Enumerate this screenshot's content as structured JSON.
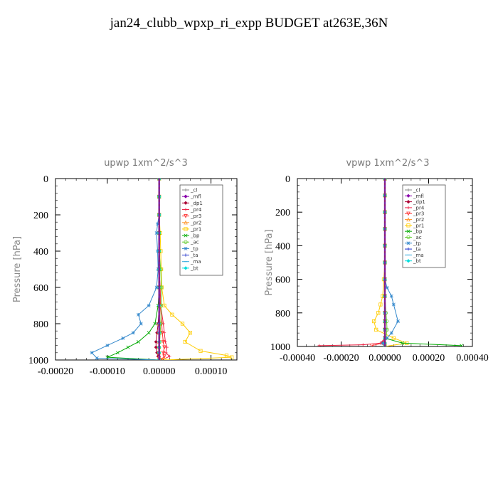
{
  "page": {
    "title": "jan24_clubb_wpxp_ri_expp  BUDGET at263E,36N"
  },
  "chart_data": [
    {
      "type": "line",
      "title": "upwp   1xm^2/s^3",
      "xlabel": "",
      "ylabel": "Pressure [hPa]",
      "xlim": [
        -0.0002,
        0.00015
      ],
      "ylim": [
        1000,
        0
      ],
      "xticks": [
        -0.0002,
        -0.0001,
        0.0,
        0.0001
      ],
      "xtick_labels": [
        "-0.00020",
        "-0.00010",
        "0.00000",
        "0.00010"
      ],
      "yticks": [
        0,
        200,
        400,
        600,
        800,
        1000
      ],
      "ytick_labels": [
        "0",
        "200",
        "400",
        "600",
        "800",
        "1000"
      ],
      "legend_position": "top-right",
      "series": [
        {
          "name": "_cl",
          "color": "#888888",
          "marker": "plus",
          "x": [
            0,
            0,
            0,
            0,
            0,
            0,
            0,
            0,
            0,
            0,
            0,
            0,
            0,
            0,
            0
          ],
          "y": [
            0,
            100,
            200,
            300,
            400,
            500,
            600,
            700,
            800,
            850,
            900,
            930,
            960,
            980,
            1000
          ]
        },
        {
          "name": "_mfl",
          "color": "#8800aa",
          "marker": "diamond",
          "x": [
            0,
            0,
            0,
            0,
            0,
            0,
            0,
            0,
            0,
            0,
            0,
            0,
            0,
            0,
            0
          ],
          "y": [
            0,
            100,
            200,
            300,
            400,
            500,
            600,
            700,
            800,
            850,
            900,
            930,
            960,
            980,
            1000
          ]
        },
        {
          "name": "_dp1",
          "color": "#aa0033",
          "marker": "diamond",
          "x": [
            0,
            0,
            0,
            0,
            0,
            0,
            0,
            0,
            -2e-06,
            -4e-06,
            -6e-06,
            -6e-06,
            -4e-06,
            -2e-06,
            0
          ],
          "y": [
            0,
            100,
            200,
            300,
            400,
            500,
            600,
            700,
            800,
            850,
            900,
            930,
            960,
            980,
            1000
          ]
        },
        {
          "name": "_pr4",
          "color": "#ee2244",
          "marker": "plus",
          "x": [
            0,
            0,
            0,
            0,
            0,
            0,
            2e-06,
            3e-06,
            8e-06,
            1e-05,
            1.2e-05,
            1.5e-05,
            1.3e-05,
            2e-05,
            5e-06
          ],
          "y": [
            0,
            100,
            200,
            300,
            400,
            500,
            600,
            700,
            800,
            850,
            900,
            930,
            960,
            980,
            1000
          ]
        },
        {
          "name": "_pr3",
          "color": "#ff3333",
          "marker": "triangle-down",
          "x": [
            0,
            0,
            0,
            0,
            0,
            0,
            0,
            2e-06,
            5e-06,
            6e-06,
            8e-06,
            1e-05,
            8e-06,
            1e-05,
            3e-06
          ],
          "y": [
            0,
            100,
            200,
            300,
            400,
            500,
            600,
            700,
            800,
            850,
            900,
            930,
            960,
            980,
            1000
          ]
        },
        {
          "name": "_pr2",
          "color": "#ff9933",
          "marker": "triangle-up",
          "x": [
            0,
            0,
            0,
            0,
            0,
            0,
            0,
            0,
            0,
            0,
            0,
            0,
            0,
            0,
            0
          ],
          "y": [
            0,
            100,
            200,
            300,
            400,
            500,
            600,
            700,
            800,
            850,
            900,
            930,
            960,
            980,
            1000
          ]
        },
        {
          "name": "_pr1",
          "color": "#ffcc00",
          "marker": "square",
          "x": [
            0,
            0,
            0,
            2e-06,
            3e-06,
            4e-06,
            5e-06,
            1e-05,
            2.5e-05,
            4.5e-05,
            6e-05,
            5e-05,
            8e-05,
            0.00013,
            0.00014,
            1e-05
          ],
          "y": [
            0,
            100,
            200,
            300,
            400,
            500,
            600,
            700,
            750,
            800,
            850,
            900,
            950,
            975,
            985,
            1000
          ]
        },
        {
          "name": "_bp",
          "color": "#00aa00",
          "marker": "cross",
          "x": [
            0,
            0,
            0,
            0,
            0,
            0,
            0,
            -2e-06,
            -8e-06,
            -2e-05,
            -4e-05,
            -6e-05,
            -8e-05,
            -0.0001,
            0
          ],
          "y": [
            0,
            100,
            200,
            300,
            400,
            500,
            600,
            700,
            800,
            850,
            900,
            930,
            960,
            985,
            1000
          ]
        },
        {
          "name": "_ac",
          "color": "#66cc33",
          "marker": "circle",
          "x": [
            0,
            0,
            0,
            0,
            0,
            3e-06,
            4e-06,
            4e-06,
            3e-06,
            2e-06,
            1e-06,
            0,
            0,
            0
          ],
          "y": [
            0,
            100,
            200,
            300,
            400,
            500,
            600,
            700,
            800,
            850,
            900,
            930,
            960,
            1000
          ]
        },
        {
          "name": "_tp",
          "color": "#3388cc",
          "marker": "star",
          "x": [
            0,
            0,
            0,
            -3e-06,
            -5e-06,
            -3e-06,
            -2e-06,
            -5e-06,
            -2e-05,
            -4e-05,
            -3.5e-05,
            -5e-05,
            -7e-05,
            -0.0001,
            -0.00013,
            -0.00012,
            0
          ],
          "y": [
            0,
            100,
            200,
            250,
            300,
            400,
            500,
            600,
            700,
            750,
            800,
            850,
            880,
            920,
            960,
            990,
            1000
          ]
        },
        {
          "name": "_ta",
          "color": "#2233cc",
          "marker": "plus",
          "x": [
            0,
            0,
            0,
            0,
            0,
            0,
            0,
            0,
            0,
            0,
            0,
            0,
            0,
            0
          ],
          "y": [
            0,
            100,
            200,
            300,
            400,
            500,
            600,
            700,
            800,
            850,
            900,
            930,
            960,
            1000
          ]
        },
        {
          "name": "_ma",
          "color": "#33aadd",
          "marker": "dash",
          "x": [
            0,
            0,
            0,
            0,
            0,
            0,
            0,
            0,
            0,
            0,
            0,
            0,
            0,
            0
          ],
          "y": [
            0,
            100,
            200,
            300,
            400,
            500,
            600,
            700,
            800,
            850,
            900,
            930,
            960,
            1000
          ]
        },
        {
          "name": "_bt",
          "color": "#00dddd",
          "marker": "diamond",
          "x": [
            0,
            0,
            0,
            0,
            0,
            0,
            0,
            0,
            0,
            0,
            0,
            0,
            0,
            0
          ],
          "y": [
            0,
            100,
            200,
            300,
            400,
            500,
            600,
            700,
            800,
            850,
            900,
            930,
            960,
            1000
          ]
        }
      ]
    },
    {
      "type": "line",
      "title": "vpwp   1xm^2/s^3",
      "xlabel": "",
      "ylabel": "Pressure [hPa]",
      "xlim": [
        -0.0004,
        0.0004
      ],
      "ylim": [
        1000,
        0
      ],
      "xticks": [
        -0.0004,
        -0.0002,
        0.0,
        0.0002,
        0.0004
      ],
      "xtick_labels": [
        "-0.00040",
        "-0.00020",
        "0.00000",
        "0.00020",
        "0.00040"
      ],
      "yticks": [
        0,
        200,
        400,
        600,
        800,
        1000
      ],
      "ytick_labels": [
        "0",
        "200",
        "400",
        "600",
        "800",
        "1000"
      ],
      "legend_position": "top-right",
      "series": [
        {
          "name": "_cl",
          "color": "#888888",
          "marker": "plus",
          "x": [
            0,
            0,
            0,
            0,
            0,
            0,
            0,
            0,
            0,
            0,
            0,
            0,
            0,
            0
          ],
          "y": [
            0,
            100,
            200,
            300,
            400,
            500,
            600,
            700,
            800,
            850,
            900,
            950,
            980,
            1000
          ]
        },
        {
          "name": "_mfl",
          "color": "#8800aa",
          "marker": "diamond",
          "x": [
            0,
            0,
            0,
            0,
            0,
            0,
            0,
            0,
            0,
            0,
            0,
            0,
            0,
            0
          ],
          "y": [
            0,
            100,
            200,
            300,
            400,
            500,
            600,
            700,
            800,
            850,
            900,
            950,
            980,
            1000
          ]
        },
        {
          "name": "_dp1",
          "color": "#aa0033",
          "marker": "diamond",
          "x": [
            0,
            0,
            0,
            0,
            0,
            0,
            0,
            0,
            0,
            0,
            0,
            0,
            -1e-05,
            0
          ],
          "y": [
            0,
            100,
            200,
            300,
            400,
            500,
            600,
            700,
            800,
            850,
            900,
            950,
            980,
            1000
          ]
        },
        {
          "name": "_pr4",
          "color": "#ee2244",
          "marker": "plus",
          "x": [
            0,
            0,
            0,
            0,
            0,
            0,
            0,
            0,
            0,
            0,
            0,
            0,
            -2e-05,
            -0.0001,
            -0.0003
          ],
          "y": [
            0,
            100,
            200,
            300,
            400,
            500,
            600,
            700,
            800,
            850,
            900,
            950,
            980,
            990,
            995
          ]
        },
        {
          "name": "_pr3",
          "color": "#ff3333",
          "marker": "triangle-down",
          "x": [
            0,
            0,
            0,
            0,
            0,
            0,
            0,
            0,
            0,
            0,
            0,
            0,
            -1e-05,
            -6e-05
          ],
          "y": [
            0,
            100,
            200,
            300,
            400,
            500,
            600,
            700,
            800,
            850,
            900,
            950,
            980,
            995
          ]
        },
        {
          "name": "_pr2",
          "color": "#ff9933",
          "marker": "triangle-up",
          "x": [
            0,
            0,
            0,
            0,
            0,
            0,
            0,
            0,
            0,
            0,
            0,
            0,
            0,
            0
          ],
          "y": [
            0,
            100,
            200,
            300,
            400,
            500,
            600,
            700,
            800,
            850,
            900,
            950,
            980,
            1000
          ]
        },
        {
          "name": "_pr1",
          "color": "#ffcc00",
          "marker": "square",
          "x": [
            0,
            0,
            0,
            0,
            0,
            0,
            -5e-06,
            -1e-05,
            -2e-05,
            -3e-05,
            -5e-05,
            -4e-05,
            4e-05,
            0.0001,
            0
          ],
          "y": [
            0,
            100,
            200,
            300,
            400,
            500,
            600,
            700,
            750,
            800,
            850,
            900,
            950,
            980,
            1000
          ]
        },
        {
          "name": "_bp",
          "color": "#00aa00",
          "marker": "cross",
          "x": [
            0,
            0,
            0,
            0,
            0,
            0,
            0,
            0,
            0,
            0,
            0,
            0,
            8e-05,
            0.00035
          ],
          "y": [
            0,
            100,
            200,
            300,
            400,
            500,
            600,
            700,
            800,
            850,
            900,
            950,
            980,
            995
          ]
        },
        {
          "name": "_ac",
          "color": "#66cc33",
          "marker": "circle",
          "x": [
            0,
            0,
            0,
            0,
            0,
            0,
            0,
            0,
            5e-06,
            8e-06,
            1e-05,
            5e-06,
            0,
            0
          ],
          "y": [
            0,
            100,
            200,
            300,
            400,
            500,
            600,
            700,
            800,
            850,
            900,
            950,
            980,
            1000
          ]
        },
        {
          "name": "_tp",
          "color": "#3388cc",
          "marker": "star",
          "x": [
            0,
            0,
            0,
            0,
            0,
            0,
            0,
            1e-05,
            3e-05,
            4e-05,
            6e-05,
            3e-05,
            1e-05,
            -1e-05,
            0
          ],
          "y": [
            0,
            100,
            200,
            300,
            400,
            500,
            600,
            650,
            700,
            750,
            850,
            920,
            950,
            980,
            1000
          ]
        },
        {
          "name": "_ta",
          "color": "#2233cc",
          "marker": "plus",
          "x": [
            0,
            0,
            0,
            0,
            0,
            0,
            0,
            0,
            0,
            0,
            0,
            0,
            0,
            0
          ],
          "y": [
            0,
            100,
            200,
            300,
            400,
            500,
            600,
            700,
            800,
            850,
            900,
            950,
            980,
            1000
          ]
        },
        {
          "name": "_ma",
          "color": "#33aadd",
          "marker": "dash",
          "x": [
            0,
            0,
            0,
            0,
            0,
            0,
            0,
            0,
            0,
            0,
            0,
            0,
            0,
            0
          ],
          "y": [
            0,
            100,
            200,
            300,
            400,
            500,
            600,
            700,
            800,
            850,
            900,
            950,
            980,
            1000
          ]
        },
        {
          "name": "_bt",
          "color": "#00dddd",
          "marker": "diamond",
          "x": [
            0,
            0,
            0,
            0,
            0,
            0,
            0,
            0,
            0,
            0,
            0,
            0,
            0,
            0
          ],
          "y": [
            0,
            100,
            200,
            300,
            400,
            500,
            600,
            700,
            800,
            850,
            900,
            950,
            980,
            1000
          ]
        }
      ]
    }
  ]
}
